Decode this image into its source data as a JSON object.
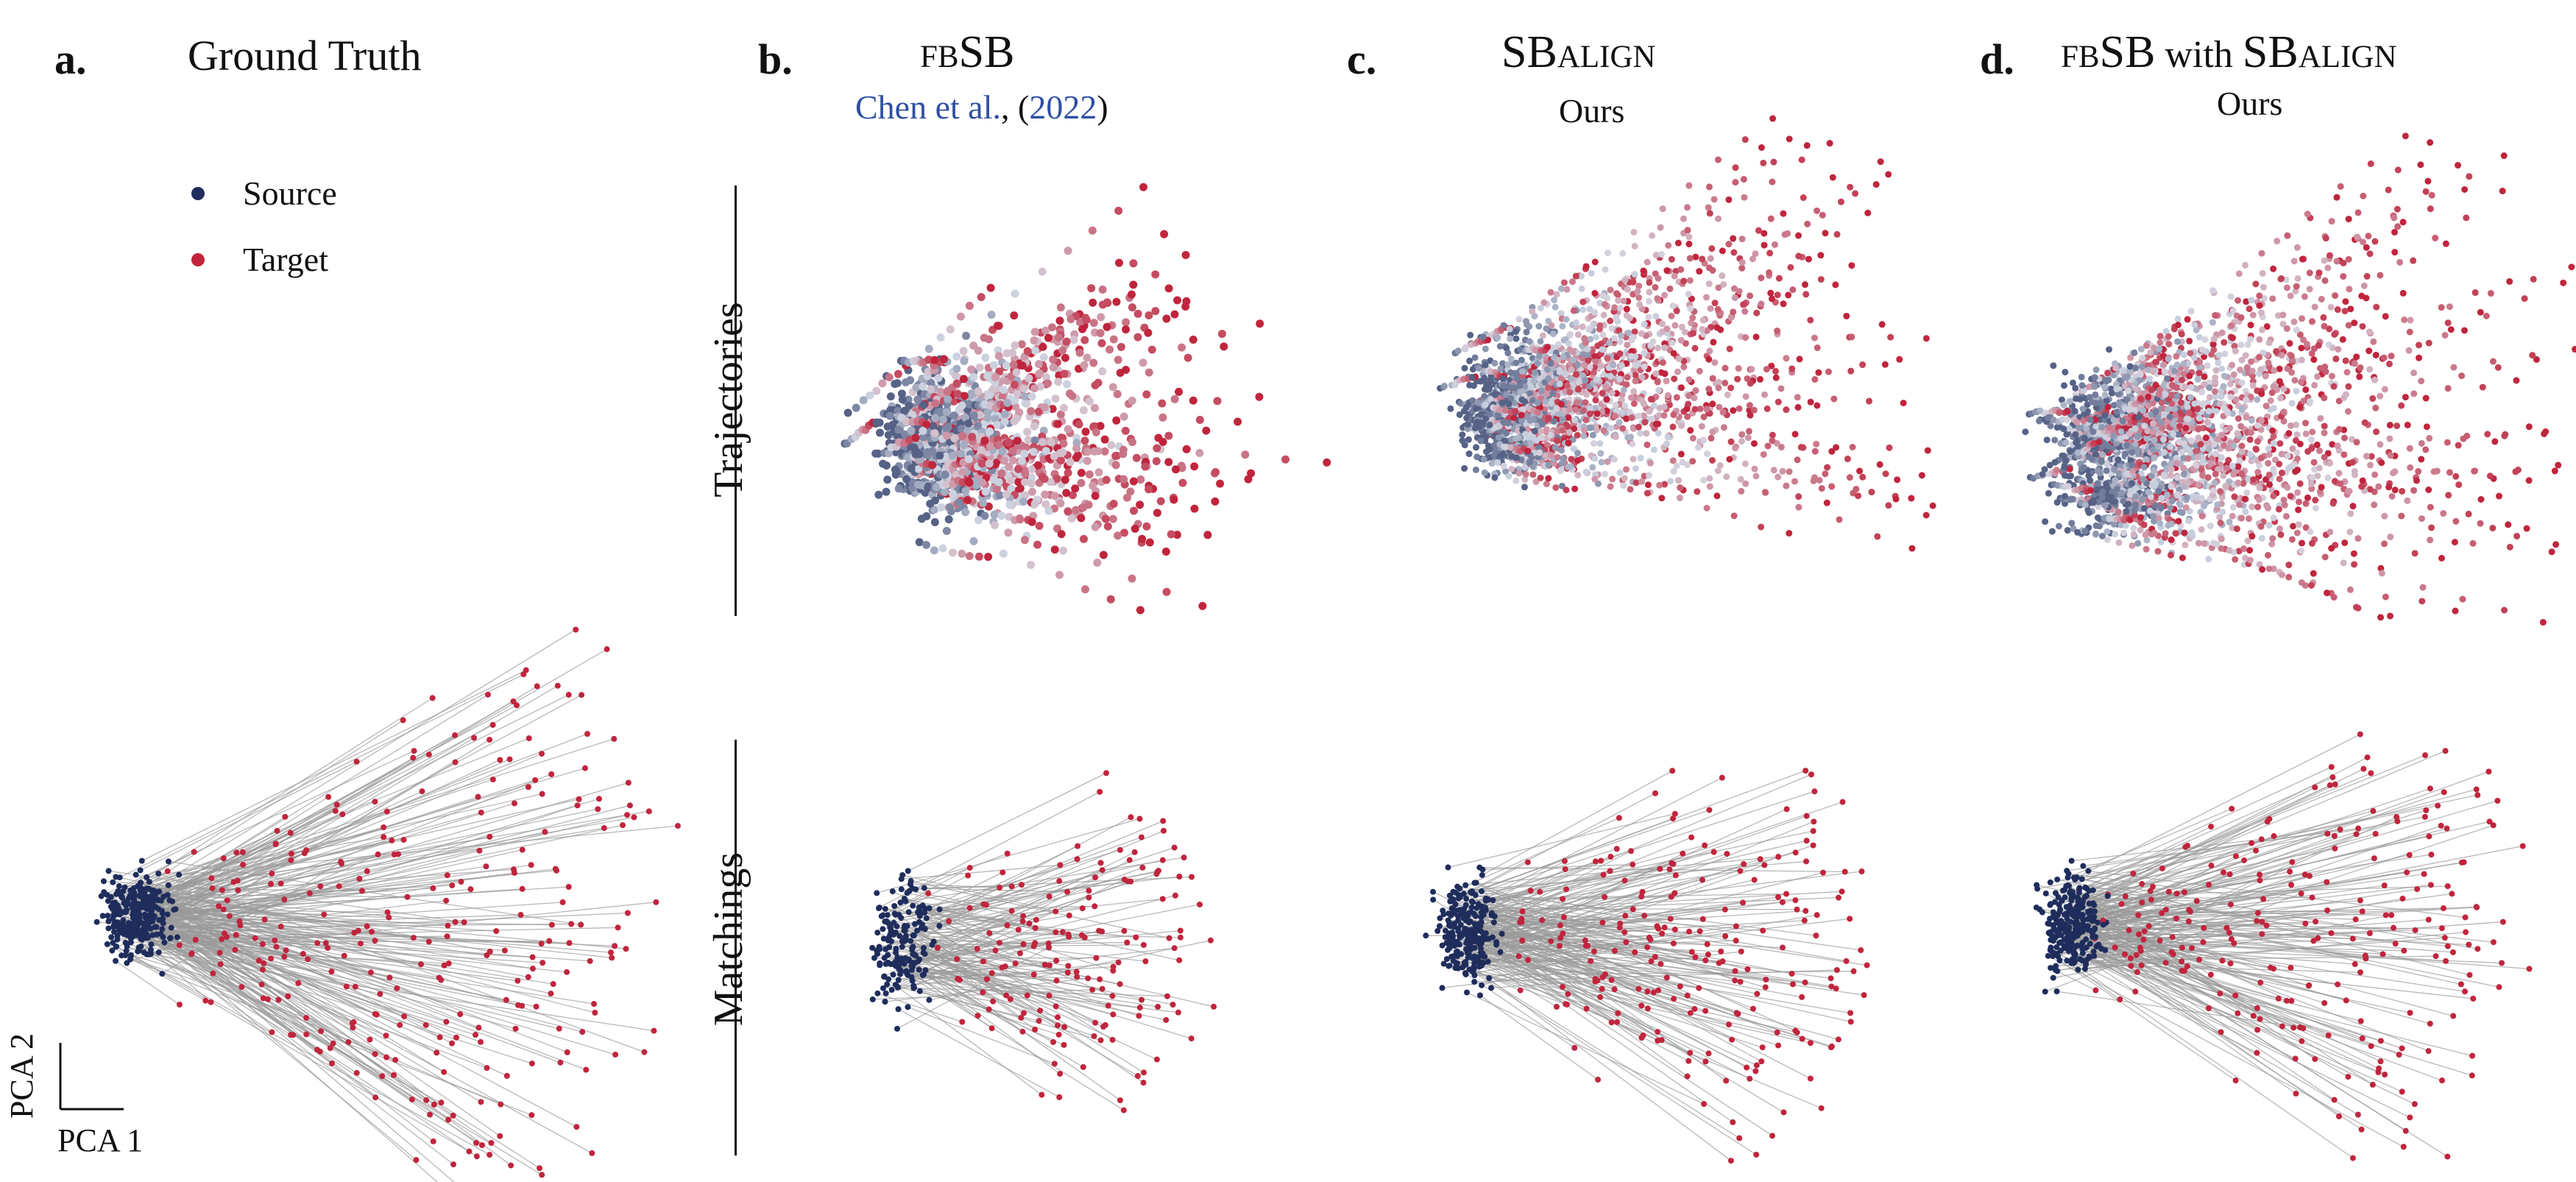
{
  "panels": {
    "a": {
      "letter": "a.",
      "title": "Ground Truth"
    },
    "b": {
      "letter": "b.",
      "title_sc": "fb",
      "title_rest": "SB",
      "cite_prefix": "Chen et al.",
      "cite_sep": ", (",
      "cite_year": "2022",
      "cite_close": ")"
    },
    "c": {
      "letter": "c.",
      "title_main": "SB",
      "title_sc": "align",
      "sub": "Ours"
    },
    "d": {
      "letter": "d.",
      "title_sc1": "fb",
      "title_sb": "SB",
      "title_with": " with ",
      "title_sb2": "SB",
      "title_sc2": "align",
      "sub": "Ours"
    }
  },
  "rows": {
    "top": "Trajectories",
    "bottom": "Matchings"
  },
  "legend": {
    "source": "Source",
    "target": "Target"
  },
  "axes": {
    "pca2": "PCA 2",
    "pca1": "PCA 1"
  },
  "colors": {
    "source": "#1f2d5c",
    "target": "#c0253d",
    "line": "#9a9a9a"
  }
}
